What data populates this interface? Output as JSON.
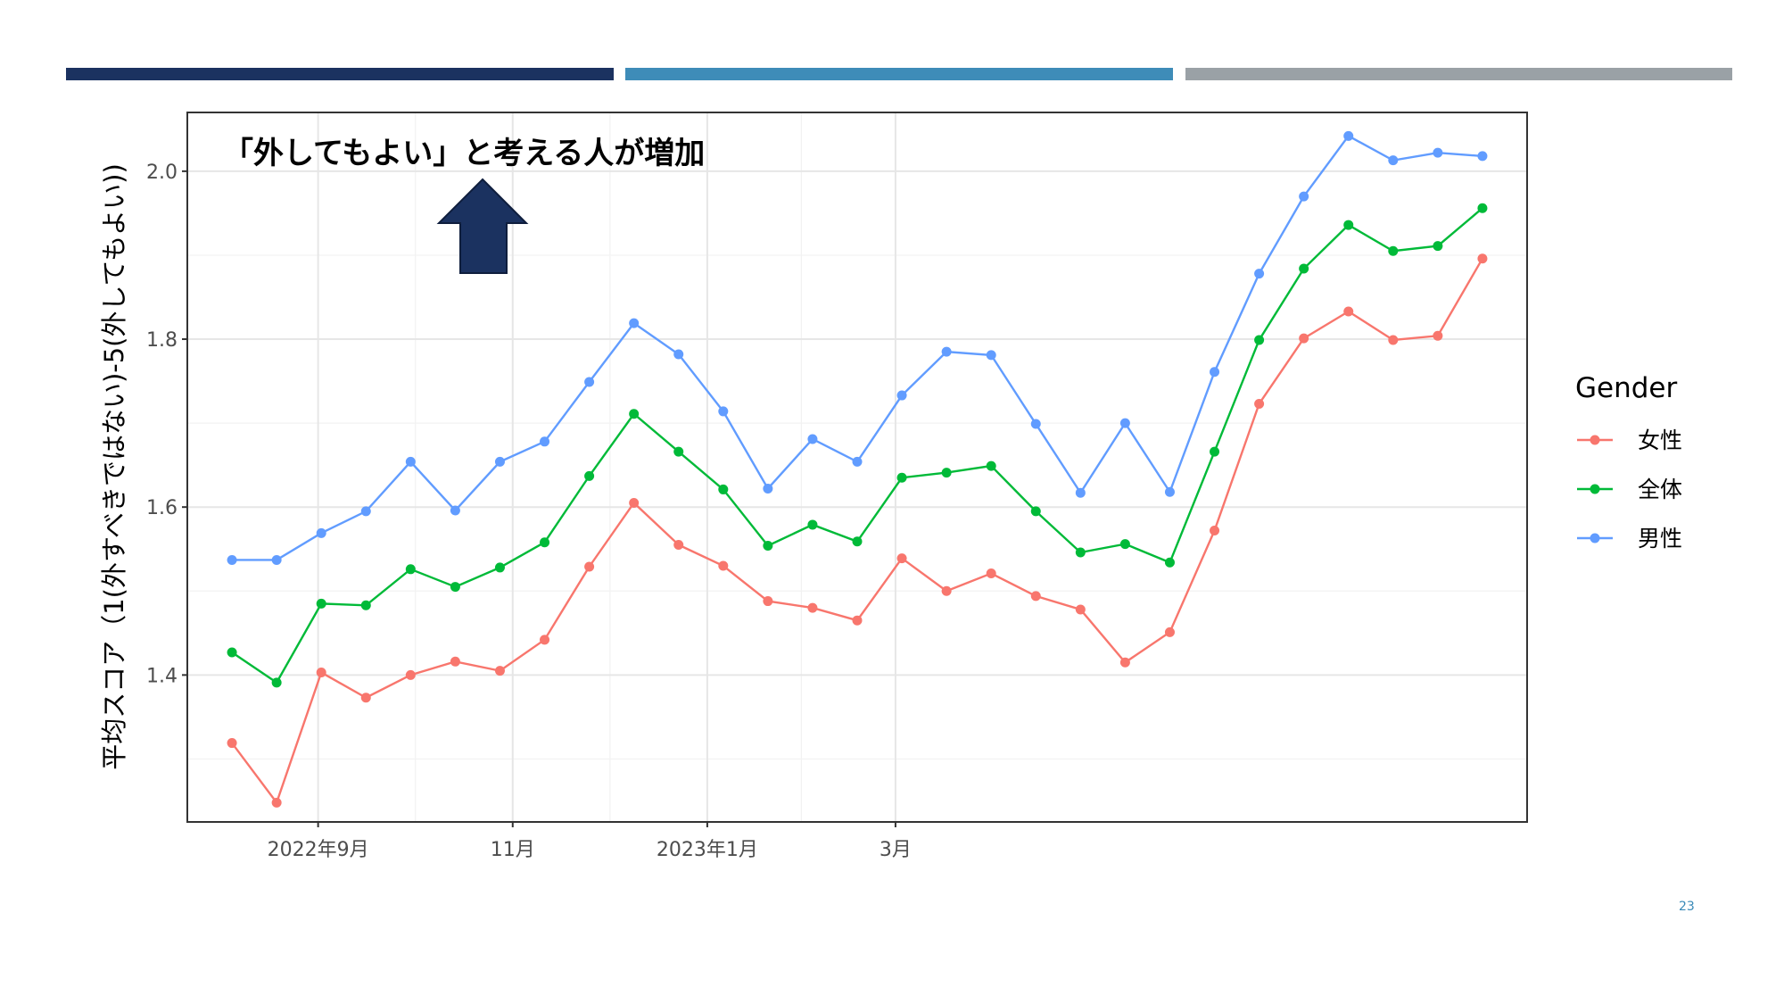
{
  "header_bars": [
    {
      "color": "#1b3260"
    },
    {
      "color": "#3e8cb8"
    },
    {
      "color": "#9aa1a6"
    }
  ],
  "page_number": "23",
  "chart_data": {
    "type": "line",
    "title": "",
    "annotation": "「外してもよい」と考える人が増加",
    "annotation_arrow": "up-arrow",
    "ylabel": "平均スコア（1(外すべきではない)-5(外してもよい))",
    "xlabel": "",
    "ylim": [
      1.225,
      2.07
    ],
    "yticks": [
      1.4,
      1.6,
      1.8,
      2.0
    ],
    "ytick_labels": [
      "1.4",
      "1.6",
      "1.8",
      "2.0"
    ],
    "x": [
      "2022-08-05",
      "2022-08-19",
      "2022-09-02",
      "2022-09-16",
      "2022-09-30",
      "2022-10-14",
      "2022-10-28",
      "2022-11-11",
      "2022-11-25",
      "2022-12-09",
      "2022-12-23",
      "2023-01-06",
      "2023-01-20",
      "2023-02-03",
      "2023-02-17",
      "2023-03-03",
      "2023-03-17",
      "2023-03-31",
      "2023-04-14",
      "2023-04-28",
      "2023-05-12",
      "2023-05-26",
      "2023-06-09",
      "2023-06-23",
      "2023-07-07",
      "2023-07-21",
      "2023-08-04",
      "2023-08-18",
      "2023-09-01"
    ],
    "xlim": [
      "2022-07-22",
      "2023-09-15"
    ],
    "xticks": [
      "2022-09-01",
      "2022-11-01",
      "2023-01-01",
      "2023-03-01"
    ],
    "xtick_labels": [
      "2022年9月",
      "11月",
      "2023年1月",
      "3月"
    ],
    "grid": true,
    "legend_title": "Gender",
    "legend_position": "right",
    "series": [
      {
        "name": "女性",
        "color": "#f8766d",
        "values": [
          1.319,
          1.248,
          1.403,
          1.373,
          1.4,
          1.416,
          1.405,
          1.442,
          1.529,
          1.605,
          1.555,
          1.53,
          1.488,
          1.48,
          1.465,
          1.539,
          1.5,
          1.521,
          1.494,
          1.478,
          1.415,
          1.451,
          1.572,
          1.723,
          1.801,
          1.833,
          1.799,
          1.804,
          1.896
        ]
      },
      {
        "name": "全体",
        "color": "#00ba38",
        "values": [
          1.427,
          1.391,
          1.485,
          1.483,
          1.526,
          1.505,
          1.528,
          1.558,
          1.637,
          1.711,
          1.666,
          1.621,
          1.554,
          1.579,
          1.559,
          1.635,
          1.641,
          1.649,
          1.595,
          1.546,
          1.556,
          1.534,
          1.666,
          1.799,
          1.884,
          1.936,
          1.905,
          1.911,
          1.956
        ]
      },
      {
        "name": "男性",
        "color": "#619cff",
        "values": [
          1.537,
          1.537,
          1.569,
          1.595,
          1.654,
          1.596,
          1.654,
          1.678,
          1.749,
          1.819,
          1.782,
          1.714,
          1.622,
          1.681,
          1.654,
          1.733,
          1.785,
          1.781,
          1.699,
          1.617,
          1.7,
          1.618,
          1.761,
          1.878,
          1.97,
          2.042,
          2.013,
          2.022,
          2.018
        ]
      }
    ]
  }
}
